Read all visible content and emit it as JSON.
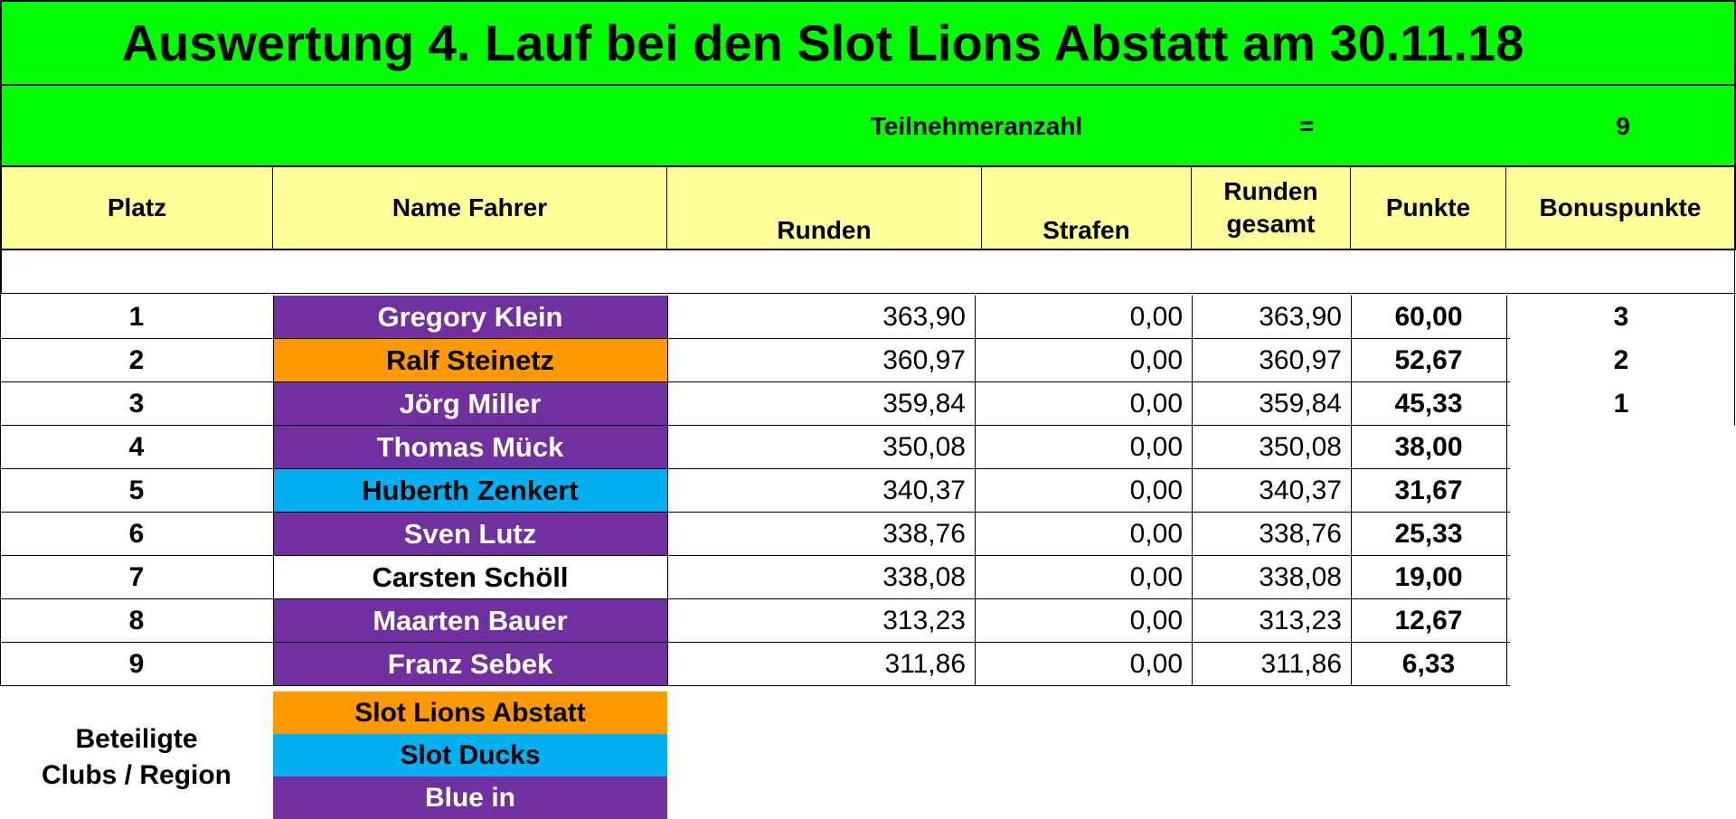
{
  "title": "Auswertung 4. Lauf bei den Slot Lions Abstatt am 30.11.18",
  "participants": {
    "label": "Teilnehmeranzahl",
    "equals": "=",
    "value": "9"
  },
  "colors": {
    "title_bg": "#00ff00",
    "header_bg": "#ffff99",
    "club_purple": "#7030a0",
    "club_orange": "#ff9900",
    "club_cyan": "#00b0f0"
  },
  "headers": {
    "platz": "Platz",
    "name": "Name Fahrer",
    "runden": "Runden",
    "strafen": "Strafen",
    "runden_gesamt_1": "Runden",
    "runden_gesamt_2": "gesamt",
    "punkte": "Punkte",
    "bonuspunkte": "Bonuspunkte"
  },
  "rows": [
    {
      "platz": "1",
      "name": "Gregory Klein",
      "club": "purple",
      "runden": "363,90",
      "strafen": "0,00",
      "gesamt": "363,90",
      "punkte": "60,00",
      "bonus": "3"
    },
    {
      "platz": "2",
      "name": "Ralf Steinetz",
      "club": "orange",
      "runden": "360,97",
      "strafen": "0,00",
      "gesamt": "360,97",
      "punkte": "52,67",
      "bonus": "2"
    },
    {
      "platz": "3",
      "name": "Jörg Miller",
      "club": "purple",
      "runden": "359,84",
      "strafen": "0,00",
      "gesamt": "359,84",
      "punkte": "45,33",
      "bonus": "1"
    },
    {
      "platz": "4",
      "name": "Thomas Mück",
      "club": "purple",
      "runden": "350,08",
      "strafen": "0,00",
      "gesamt": "350,08",
      "punkte": "38,00",
      "bonus": ""
    },
    {
      "platz": "5",
      "name": "Huberth Zenkert",
      "club": "cyan",
      "runden": "340,37",
      "strafen": "0,00",
      "gesamt": "340,37",
      "punkte": "31,67",
      "bonus": ""
    },
    {
      "platz": "6",
      "name": "Sven Lutz",
      "club": "purple",
      "runden": "338,76",
      "strafen": "0,00",
      "gesamt": "338,76",
      "punkte": "25,33",
      "bonus": ""
    },
    {
      "platz": "7",
      "name": "Carsten Schöll",
      "club": "none",
      "runden": "338,08",
      "strafen": "0,00",
      "gesamt": "338,08",
      "punkte": "19,00",
      "bonus": ""
    },
    {
      "platz": "8",
      "name": "Maarten Bauer",
      "club": "purple",
      "runden": "313,23",
      "strafen": "0,00",
      "gesamt": "313,23",
      "punkte": "12,67",
      "bonus": ""
    },
    {
      "platz": "9",
      "name": "Franz Sebek",
      "club": "purple",
      "runden": "311,86",
      "strafen": "0,00",
      "gesamt": "311,86",
      "punkte": "6,33",
      "bonus": ""
    }
  ],
  "legend": {
    "label_line1": "Beteiligte",
    "label_line2": "Clubs / Region",
    "clubs": [
      {
        "name": "Slot Lions Abstatt",
        "color": "orange"
      },
      {
        "name": "Slot Ducks",
        "color": "cyan"
      },
      {
        "name": "Blue in",
        "color": "purple"
      }
    ]
  }
}
